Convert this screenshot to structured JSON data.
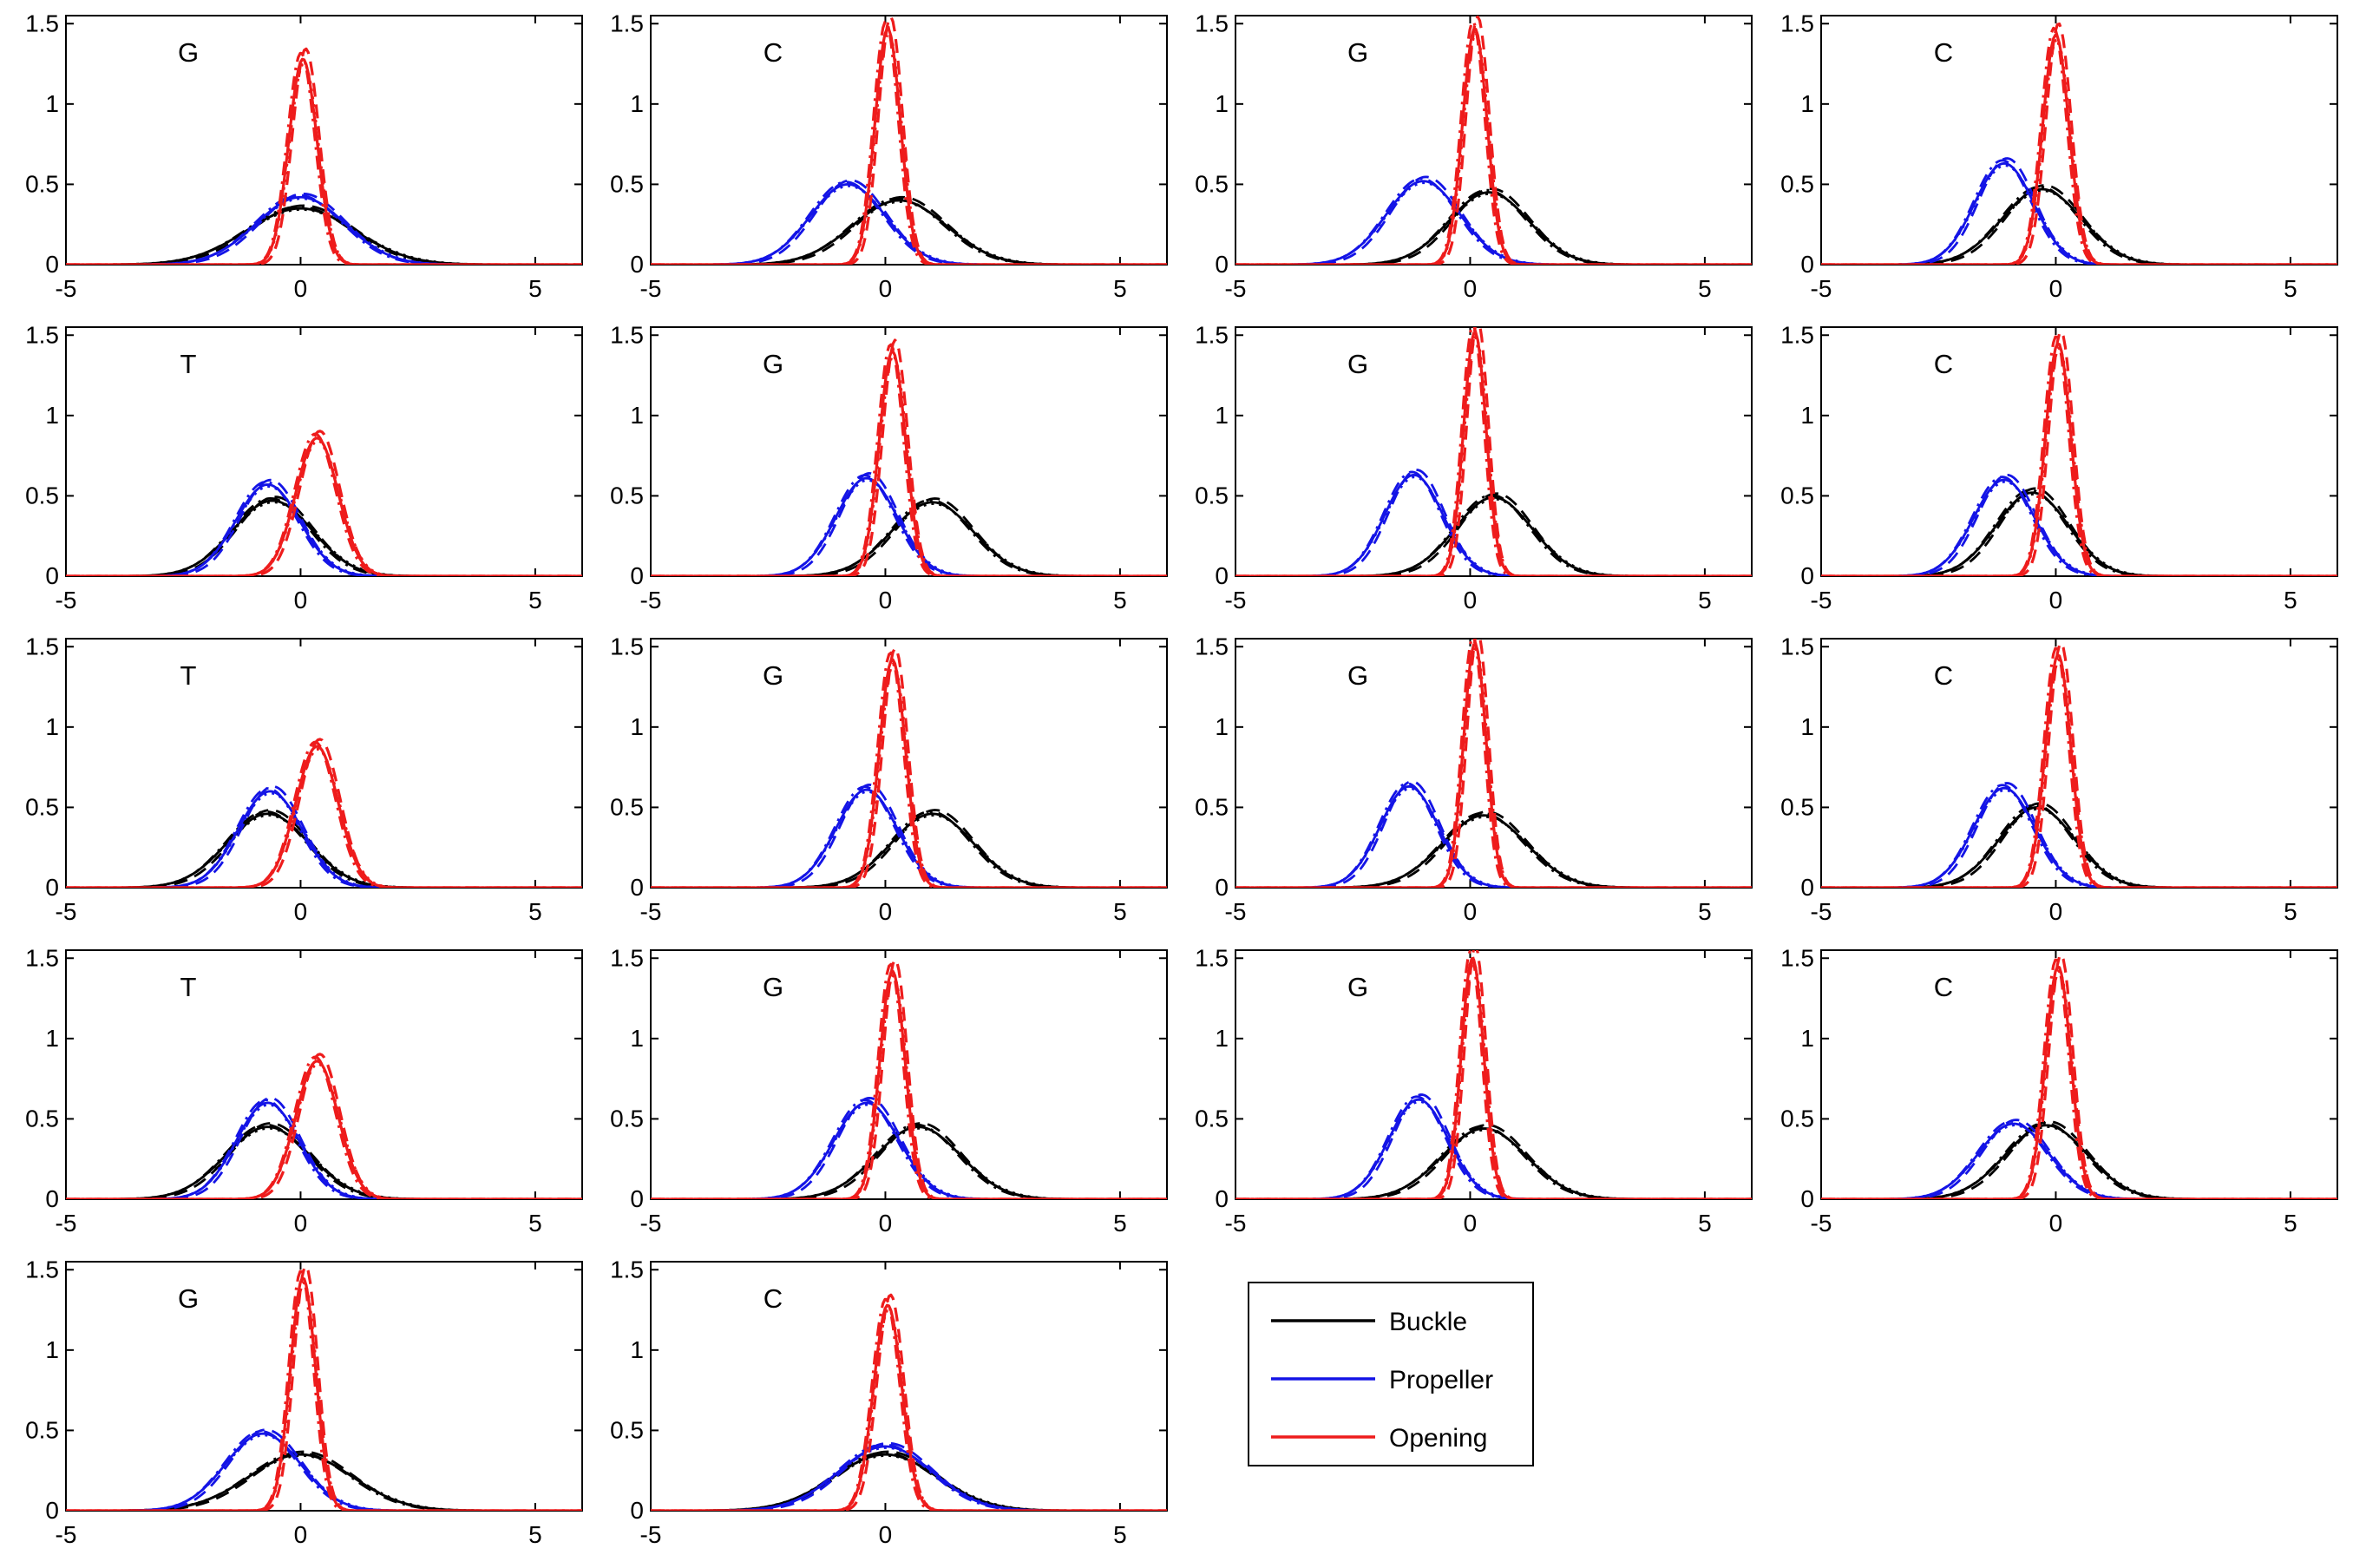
{
  "chart_data": {
    "type": "line",
    "xlim": [
      -5,
      6
    ],
    "ylim": [
      0,
      1.55
    ],
    "x_ticks": [
      -5,
      0,
      5
    ],
    "y_ticks": [
      0,
      0.5,
      1,
      1.5
    ],
    "x_tick_labels": [
      "-5",
      "0",
      "5"
    ],
    "y_tick_labels": [
      "0",
      "0.5",
      "1",
      "1.5"
    ],
    "grid": false,
    "legend": {
      "placement": "bottom-right",
      "entries": [
        {
          "label": "Buckle",
          "color": "#000000"
        },
        {
          "label": "Propeller",
          "color": "#1414e6"
        },
        {
          "label": "Opening",
          "color": "#ee1c1c"
        }
      ]
    },
    "colors": {
      "buckle": "#000000",
      "propeller": "#1414e6",
      "opening": "#ee1c1c"
    },
    "line_styles": [
      "solid",
      "dashed",
      "dashdot",
      "dotted"
    ],
    "note_curves": "each series drawn as 4 near-identical Gaussian curves (solid, dashed, dash-dot, dotted); values give mean, sd and peak height",
    "panels": [
      {
        "label": "G",
        "buckle": {
          "mean": 0.0,
          "sd": 1.15,
          "peak": 0.35
        },
        "propeller": {
          "mean": 0.0,
          "sd": 0.95,
          "peak": 0.42
        },
        "opening": {
          "mean": 0.05,
          "sd": 0.3,
          "peak": 1.28
        }
      },
      {
        "label": "C",
        "buckle": {
          "mean": 0.3,
          "sd": 1.0,
          "peak": 0.4
        },
        "propeller": {
          "mean": -0.8,
          "sd": 0.8,
          "peak": 0.5
        },
        "opening": {
          "mean": 0.05,
          "sd": 0.27,
          "peak": 1.47
        }
      },
      {
        "label": "G",
        "buckle": {
          "mean": 0.4,
          "sd": 0.85,
          "peak": 0.45
        },
        "propeller": {
          "mean": -1.0,
          "sd": 0.78,
          "peak": 0.52
        },
        "opening": {
          "mean": 0.1,
          "sd": 0.26,
          "peak": 1.47
        }
      },
      {
        "label": "C",
        "buckle": {
          "mean": -0.3,
          "sd": 0.85,
          "peak": 0.47
        },
        "propeller": {
          "mean": -1.1,
          "sd": 0.63,
          "peak": 0.63
        },
        "opening": {
          "mean": 0.0,
          "sd": 0.28,
          "peak": 1.43
        }
      },
      {
        "label": "T",
        "buckle": {
          "mean": -0.6,
          "sd": 0.85,
          "peak": 0.47
        },
        "propeller": {
          "mean": -0.7,
          "sd": 0.68,
          "peak": 0.57
        },
        "opening": {
          "mean": 0.35,
          "sd": 0.45,
          "peak": 0.86
        }
      },
      {
        "label": "G",
        "buckle": {
          "mean": 1.0,
          "sd": 0.87,
          "peak": 0.46
        },
        "propeller": {
          "mean": -0.4,
          "sd": 0.65,
          "peak": 0.61
        },
        "opening": {
          "mean": 0.15,
          "sd": 0.28,
          "peak": 1.4
        }
      },
      {
        "label": "G",
        "buckle": {
          "mean": 0.5,
          "sd": 0.82,
          "peak": 0.49
        },
        "propeller": {
          "mean": -1.2,
          "sd": 0.62,
          "peak": 0.63
        },
        "opening": {
          "mean": 0.1,
          "sd": 0.24,
          "peak": 1.52
        }
      },
      {
        "label": "C",
        "buckle": {
          "mean": -0.5,
          "sd": 0.77,
          "peak": 0.52
        },
        "propeller": {
          "mean": -1.1,
          "sd": 0.65,
          "peak": 0.6
        },
        "opening": {
          "mean": 0.05,
          "sd": 0.27,
          "peak": 1.45
        }
      },
      {
        "label": "T",
        "buckle": {
          "mean": -0.7,
          "sd": 0.87,
          "peak": 0.46
        },
        "propeller": {
          "mean": -0.65,
          "sd": 0.68,
          "peak": 0.6
        },
        "opening": {
          "mean": 0.35,
          "sd": 0.45,
          "peak": 0.88
        }
      },
      {
        "label": "G",
        "buckle": {
          "mean": 1.0,
          "sd": 0.87,
          "peak": 0.46
        },
        "propeller": {
          "mean": -0.4,
          "sd": 0.65,
          "peak": 0.61
        },
        "opening": {
          "mean": 0.15,
          "sd": 0.28,
          "peak": 1.42
        }
      },
      {
        "label": "G",
        "buckle": {
          "mean": 0.3,
          "sd": 0.9,
          "peak": 0.45
        },
        "propeller": {
          "mean": -1.3,
          "sd": 0.62,
          "peak": 0.63
        },
        "opening": {
          "mean": 0.1,
          "sd": 0.24,
          "peak": 1.52
        }
      },
      {
        "label": "C",
        "buckle": {
          "mean": -0.4,
          "sd": 0.8,
          "peak": 0.5
        },
        "propeller": {
          "mean": -1.1,
          "sd": 0.65,
          "peak": 0.62
        },
        "opening": {
          "mean": 0.05,
          "sd": 0.27,
          "peak": 1.45
        }
      },
      {
        "label": "T",
        "buckle": {
          "mean": -0.7,
          "sd": 0.9,
          "peak": 0.45
        },
        "propeller": {
          "mean": -0.7,
          "sd": 0.67,
          "peak": 0.6
        },
        "opening": {
          "mean": 0.35,
          "sd": 0.45,
          "peak": 0.86
        }
      },
      {
        "label": "G",
        "buckle": {
          "mean": 0.7,
          "sd": 0.9,
          "peak": 0.45
        },
        "propeller": {
          "mean": -0.4,
          "sd": 0.7,
          "peak": 0.6
        },
        "opening": {
          "mean": 0.15,
          "sd": 0.27,
          "peak": 1.42
        }
      },
      {
        "label": "G",
        "buckle": {
          "mean": 0.3,
          "sd": 0.9,
          "peak": 0.44
        },
        "propeller": {
          "mean": -1.1,
          "sd": 0.63,
          "peak": 0.62
        },
        "opening": {
          "mean": 0.05,
          "sd": 0.24,
          "peak": 1.5
        }
      },
      {
        "label": "C",
        "buckle": {
          "mean": -0.2,
          "sd": 0.87,
          "peak": 0.46
        },
        "propeller": {
          "mean": -0.9,
          "sd": 0.75,
          "peak": 0.47
        },
        "opening": {
          "mean": 0.05,
          "sd": 0.27,
          "peak": 1.45
        }
      },
      {
        "label": "G",
        "buckle": {
          "mean": 0.0,
          "sd": 1.1,
          "peak": 0.35
        },
        "propeller": {
          "mean": -0.8,
          "sd": 0.8,
          "peak": 0.48
        },
        "opening": {
          "mean": 0.05,
          "sd": 0.27,
          "peak": 1.45
        }
      },
      {
        "label": "C",
        "buckle": {
          "mean": 0.0,
          "sd": 1.1,
          "peak": 0.35
        },
        "propeller": {
          "mean": 0.0,
          "sd": 1.0,
          "peak": 0.4
        },
        "opening": {
          "mean": 0.05,
          "sd": 0.3,
          "peak": 1.28
        }
      }
    ]
  }
}
